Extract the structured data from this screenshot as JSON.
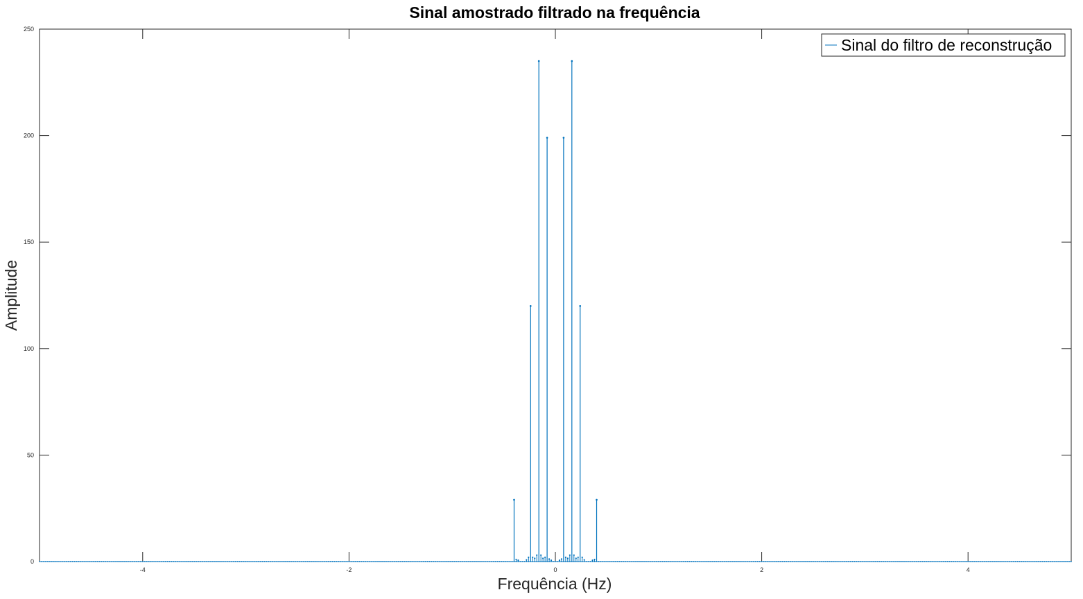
{
  "chart_data": {
    "type": "stem",
    "title": "Sinal amostrado filtrado na frequência",
    "xlabel": "Frequência (Hz)",
    "ylabel": "Amplitude",
    "xlim": [
      -5,
      5
    ],
    "ylim": [
      0,
      250
    ],
    "xticks": [
      -4,
      -2,
      0,
      2,
      4
    ],
    "xtick_labels": [
      "-4",
      "-2",
      "0",
      "2",
      "4"
    ],
    "yticks": [
      0,
      50,
      100,
      150,
      200,
      250
    ],
    "ytick_labels": [
      "0",
      "50",
      "100",
      "150",
      "200",
      "250"
    ],
    "grid": false,
    "box": true,
    "legend": {
      "position": "top-right"
    },
    "series": [
      {
        "name": "Sinal do filtro de reconstrução",
        "color": "#0072BD",
        "marker": "dot",
        "baseline": 0,
        "sample_spacing": 0.02,
        "peaks": [
          {
            "x": -0.4,
            "y": 29
          },
          {
            "x": -0.24,
            "y": 120
          },
          {
            "x": -0.16,
            "y": 235
          },
          {
            "x": -0.08,
            "y": 199
          },
          {
            "x": 0.08,
            "y": 199
          },
          {
            "x": 0.16,
            "y": 235
          },
          {
            "x": 0.24,
            "y": 120
          },
          {
            "x": 0.4,
            "y": 29
          }
        ],
        "small_values": [
          {
            "x": -0.38,
            "y": 1
          },
          {
            "x": -0.36,
            "y": 0.6
          },
          {
            "x": -0.28,
            "y": 0.8
          },
          {
            "x": -0.26,
            "y": 2
          },
          {
            "x": -0.22,
            "y": 2
          },
          {
            "x": -0.2,
            "y": 1.5
          },
          {
            "x": -0.18,
            "y": 3
          },
          {
            "x": -0.14,
            "y": 3
          },
          {
            "x": -0.12,
            "y": 1.5
          },
          {
            "x": -0.1,
            "y": 2
          },
          {
            "x": -0.06,
            "y": 1.2
          },
          {
            "x": -0.04,
            "y": 0.6
          },
          {
            "x": 0.04,
            "y": 0.6
          },
          {
            "x": 0.06,
            "y": 1.2
          },
          {
            "x": 0.1,
            "y": 2
          },
          {
            "x": 0.12,
            "y": 1.5
          },
          {
            "x": 0.14,
            "y": 3
          },
          {
            "x": 0.18,
            "y": 3
          },
          {
            "x": 0.2,
            "y": 1.5
          },
          {
            "x": 0.22,
            "y": 2
          },
          {
            "x": 0.26,
            "y": 2
          },
          {
            "x": 0.28,
            "y": 0.8
          },
          {
            "x": 0.36,
            "y": 0.6
          },
          {
            "x": 0.38,
            "y": 1
          }
        ]
      }
    ]
  }
}
